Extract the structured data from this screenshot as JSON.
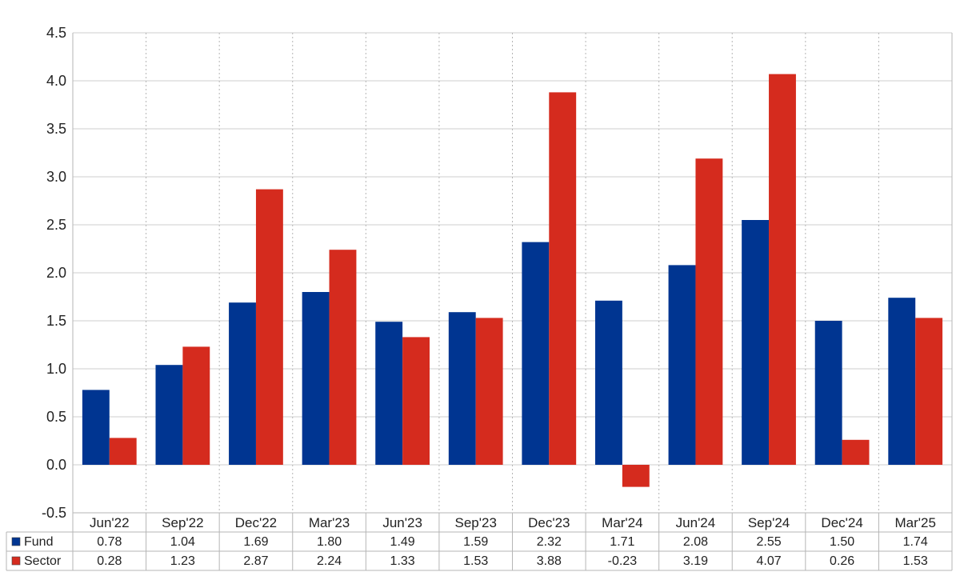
{
  "chart_data": {
    "type": "bar",
    "categories": [
      "Jun'22",
      "Sep'22",
      "Dec'22",
      "Mar'23",
      "Jun'23",
      "Sep'23",
      "Dec'23",
      "Mar'24",
      "Jun'24",
      "Sep'24",
      "Dec'24",
      "Mar'25"
    ],
    "series": [
      {
        "name": "Fund",
        "color": "#003591",
        "values": [
          0.78,
          1.04,
          1.69,
          1.8,
          1.49,
          1.59,
          2.32,
          1.71,
          2.08,
          2.55,
          1.5,
          1.74
        ],
        "labels": [
          "0.78",
          "1.04",
          "1.69",
          "1.80",
          "1.49",
          "1.59",
          "2.32",
          "1.71",
          "2.08",
          "2.55",
          "1.50",
          "1.74"
        ]
      },
      {
        "name": "Sector",
        "color": "#d52b1e",
        "values": [
          0.28,
          1.23,
          2.87,
          2.24,
          1.33,
          1.53,
          3.88,
          -0.23,
          3.19,
          4.07,
          0.26,
          1.53
        ],
        "labels": [
          "0.28",
          "1.23",
          "2.87",
          "2.24",
          "1.33",
          "1.53",
          "3.88",
          "-0.23",
          "3.19",
          "4.07",
          "0.26",
          "1.53"
        ]
      }
    ],
    "ylim": [
      -0.5,
      4.5
    ],
    "yticks": [
      "-0.5",
      "0.0",
      "0.5",
      "1.0",
      "1.5",
      "2.0",
      "2.5",
      "3.0",
      "3.5",
      "4.0",
      "4.5"
    ],
    "negative_value_color": "#ff0000",
    "grid": true,
    "legend": "data-table-bottom",
    "title": "",
    "xlabel": "",
    "ylabel": ""
  }
}
